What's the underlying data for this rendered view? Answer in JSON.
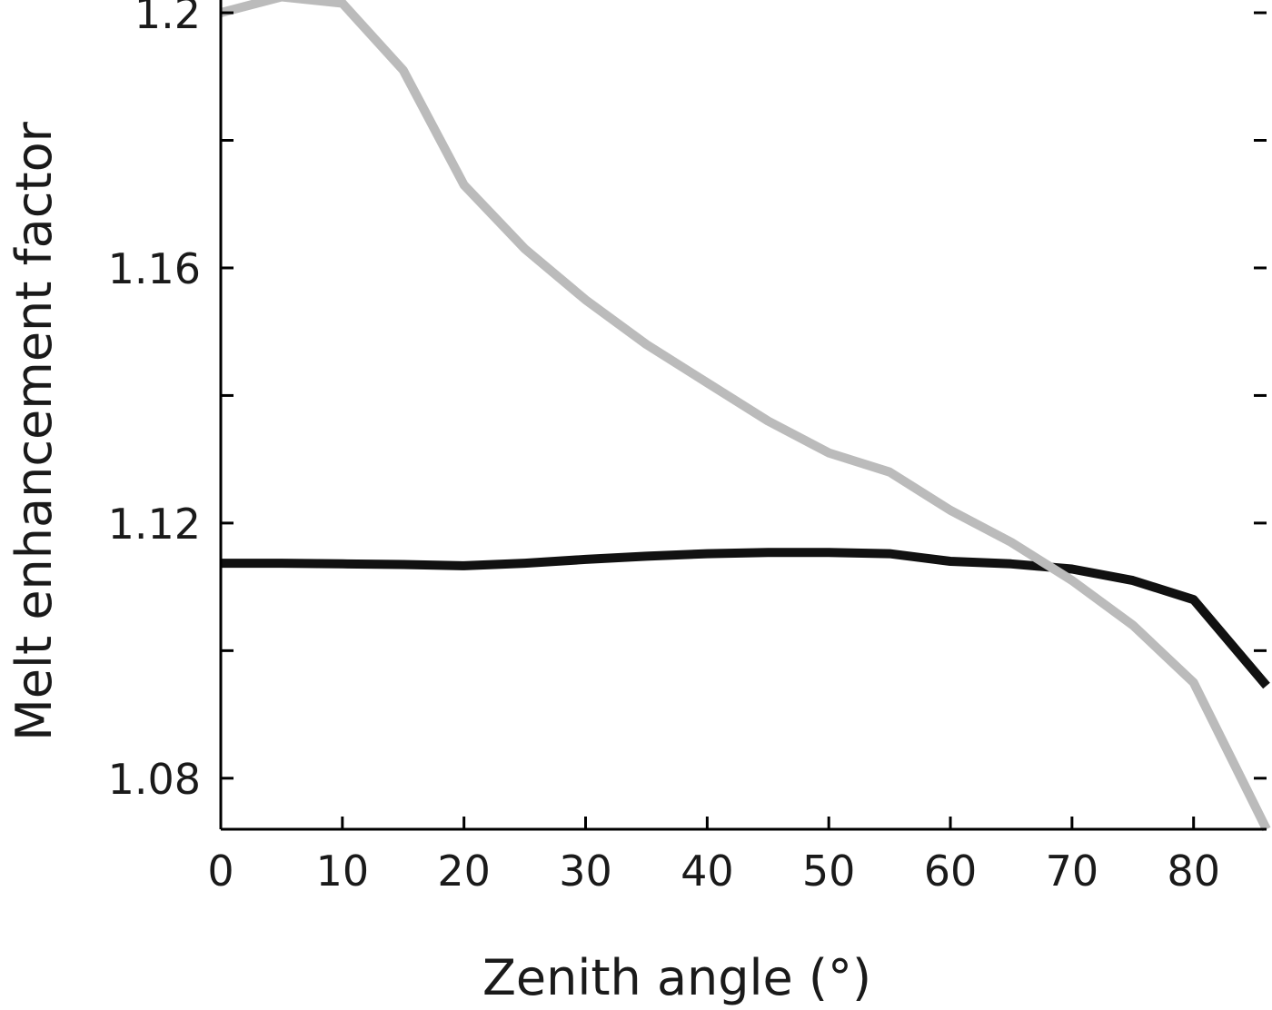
{
  "chart_data": {
    "type": "line",
    "title": "",
    "xlabel": "Zenith angle (°)",
    "ylabel": "Melt enhancement factor",
    "xlim": [
      0,
      86
    ],
    "ylim": [
      1.072,
      1.202
    ],
    "x_ticks": [
      0,
      10,
      20,
      30,
      40,
      50,
      60,
      70,
      80
    ],
    "x_tick_labels": [
      "0",
      "10",
      "20",
      "30",
      "40",
      "50",
      "60",
      "70",
      "80"
    ],
    "y_ticks": [
      1.08,
      1.12,
      1.16,
      1.2
    ],
    "y_tick_labels": [
      "1.08",
      "1.12",
      "1.16",
      "1.2"
    ],
    "y_minor_ticks": [
      1.1,
      1.14,
      1.18
    ],
    "grid": false,
    "legend": "none",
    "series": [
      {
        "color": "#111111",
        "x": [
          0,
          5,
          10,
          15,
          20,
          25,
          30,
          35,
          40,
          45,
          50,
          55,
          60,
          65,
          70,
          75,
          80,
          86
        ],
        "y": [
          1.1137,
          1.1137,
          1.1136,
          1.1135,
          1.1133,
          1.1137,
          1.1143,
          1.1148,
          1.1152,
          1.1154,
          1.1154,
          1.1152,
          1.114,
          1.1136,
          1.1128,
          1.111,
          1.108,
          1.0945
        ]
      },
      {
        "color": "#bbbbbb",
        "x": [
          0,
          5,
          10,
          15,
          20,
          25,
          30,
          35,
          40,
          45,
          50,
          55,
          60,
          65,
          70,
          75,
          80,
          86
        ],
        "y": [
          1.2,
          1.2025,
          1.2015,
          1.191,
          1.173,
          1.163,
          1.155,
          1.148,
          1.142,
          1.136,
          1.131,
          1.128,
          1.122,
          1.117,
          1.111,
          1.104,
          1.095,
          1.072
        ]
      }
    ]
  }
}
